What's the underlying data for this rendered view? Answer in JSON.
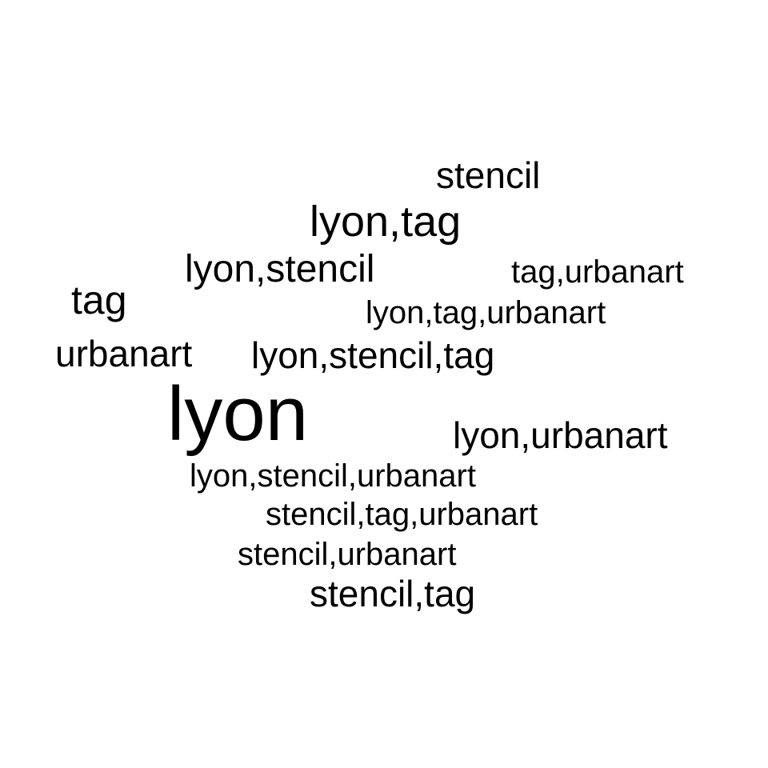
{
  "background": "#ffffff",
  "word_color": "#000000",
  "words": [
    {
      "text": "stencil"
    },
    {
      "text": "lyon,tag"
    },
    {
      "text": "lyon,stencil"
    },
    {
      "text": "tag,urbanart"
    },
    {
      "text": "tag"
    },
    {
      "text": "lyon,tag,urbanart"
    },
    {
      "text": "urbanart"
    },
    {
      "text": "lyon,stencil,tag"
    },
    {
      "text": "lyon"
    },
    {
      "text": "lyon,urbanart"
    },
    {
      "text": "lyon,stencil,urbanart"
    },
    {
      "text": "stencil,tag,urbanart"
    },
    {
      "text": "stencil,urbanart"
    },
    {
      "text": "stencil,tag"
    }
  ]
}
